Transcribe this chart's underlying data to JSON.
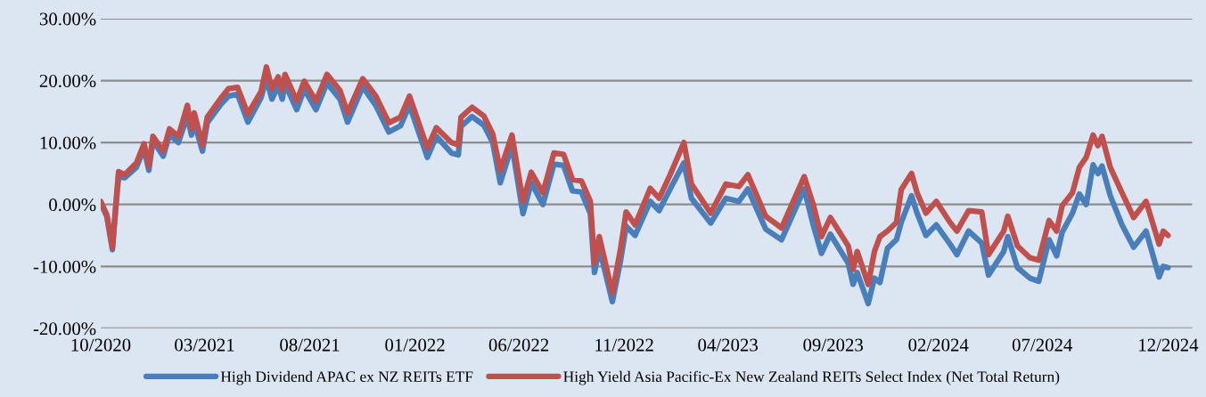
{
  "chart_data": {
    "type": "line",
    "x": [
      "2020-10-01",
      "2020-10-10",
      "2020-10-18",
      "2020-10-23",
      "2020-10-27",
      "2020-11-05",
      "2020-11-22",
      "2020-12-03",
      "2020-12-10",
      "2020-12-16",
      "2020-12-31",
      "2021-01-09",
      "2021-01-22",
      "2021-02-04",
      "2021-02-10",
      "2021-02-14",
      "2021-02-26",
      "2021-03-05",
      "2021-03-25",
      "2021-04-05",
      "2021-04-18",
      "2021-05-03",
      "2021-05-22",
      "2021-05-30",
      "2021-06-07",
      "2021-06-16",
      "2021-06-22",
      "2021-06-26",
      "2021-07-13",
      "2021-07-24",
      "2021-08-10",
      "2021-08-26",
      "2021-09-14",
      "2021-09-25",
      "2021-10-17",
      "2021-11-05",
      "2021-11-24",
      "2021-12-11",
      "2021-12-24",
      "2022-01-19",
      "2022-02-01",
      "2022-02-23",
      "2022-03-05",
      "2022-03-09",
      "2022-03-25",
      "2022-04-11",
      "2022-04-24",
      "2022-05-05",
      "2022-05-22",
      "2022-06-07",
      "2022-06-19",
      "2022-07-06",
      "2022-07-22",
      "2022-08-05",
      "2022-08-18",
      "2022-08-31",
      "2022-09-13",
      "2022-09-19",
      "2022-09-26",
      "2022-10-15",
      "2022-10-27",
      "2022-11-04",
      "2022-11-17",
      "2022-12-09",
      "2022-12-22",
      "2023-01-07",
      "2023-01-27",
      "2023-02-07",
      "2023-03-07",
      "2023-03-29",
      "2023-04-17",
      "2023-04-30",
      "2023-05-26",
      "2023-06-18",
      "2023-07-21",
      "2023-08-03",
      "2023-08-15",
      "2023-08-28",
      "2023-09-23",
      "2023-09-30",
      "2023-10-06",
      "2023-10-22",
      "2023-10-31",
      "2023-11-08",
      "2023-11-19",
      "2023-12-02",
      "2023-12-09",
      "2023-12-24",
      "2024-01-01",
      "2024-01-14",
      "2024-01-29",
      "2024-02-18",
      "2024-02-28",
      "2024-03-16",
      "2024-04-04",
      "2024-04-14",
      "2024-05-06",
      "2024-05-12",
      "2024-05-26",
      "2024-06-13",
      "2024-06-26",
      "2024-07-11",
      "2024-07-22",
      "2024-07-30",
      "2024-08-14",
      "2024-08-24",
      "2024-09-03",
      "2024-09-13",
      "2024-09-20",
      "2024-09-26",
      "2024-10-08",
      "2024-10-25",
      "2024-11-11",
      "2024-11-29",
      "2024-12-18",
      "2024-12-24",
      "2024-12-31"
    ],
    "series": [
      {
        "name": "High Dividend APAC ex NZ REITs ETF",
        "color": "#4a7ebb",
        "values": [
          0.3,
          -2,
          -7.3,
          -0.5,
          4.5,
          4.3,
          6,
          9,
          5.5,
          10.3,
          7.8,
          11.3,
          10,
          14.3,
          11.2,
          13.3,
          8.6,
          13.2,
          16.2,
          17.5,
          17.8,
          13.3,
          17.2,
          20.3,
          17,
          19.2,
          17,
          19.5,
          15.3,
          18.6,
          15.3,
          19.6,
          17,
          13.3,
          19,
          16,
          11.7,
          12.7,
          16,
          7.6,
          11,
          8.3,
          8,
          12.6,
          14.2,
          12.8,
          10,
          3.5,
          9.5,
          -1.5,
          3.5,
          0,
          6.5,
          6.3,
          2.2,
          2,
          -1.5,
          -11,
          -7,
          -15.7,
          -9,
          -3.5,
          -5,
          0.5,
          -1,
          2.5,
          6.7,
          1,
          -3,
          1,
          0.5,
          2.5,
          -4,
          -5.7,
          2.5,
          -3.3,
          -7.9,
          -4.8,
          -9.5,
          -12.9,
          -11,
          -16,
          -11.9,
          -12.6,
          -7.1,
          -5.7,
          -2.9,
          1.4,
          -1.4,
          -5,
          -3.3,
          -6.4,
          -8.1,
          -4.3,
          -6.2,
          -11.4,
          -7.6,
          -5.2,
          -10.2,
          -11.9,
          -12.4,
          -5.7,
          -8.3,
          -4.5,
          -1.4,
          1.7,
          0,
          6.4,
          5,
          6.2,
          1.4,
          -3.3,
          -6.9,
          -4.3,
          -11.7,
          -10,
          -10.2
        ]
      },
      {
        "name": "High Yield Asia Pacific-Ex New Zealand REITs Select Index (Net Total Return)",
        "color": "#c0504d",
        "values": [
          0.5,
          -1.7,
          -7,
          0,
          5.3,
          4.8,
          6.7,
          9.8,
          6.2,
          11,
          8.6,
          12.2,
          11,
          16,
          12.2,
          14.8,
          9.6,
          14.1,
          17.2,
          18.7,
          18.9,
          14.6,
          18.2,
          22.2,
          18.7,
          20.6,
          18.4,
          21,
          16.7,
          19.9,
          16.7,
          21,
          18.4,
          14.8,
          20.3,
          17.5,
          13.2,
          14.1,
          17.5,
          9.1,
          12.4,
          10,
          9.6,
          14.1,
          15.7,
          14.3,
          11.4,
          5.5,
          11.2,
          0.5,
          5.2,
          1.9,
          8.3,
          8.1,
          4,
          3.8,
          0.5,
          -9.5,
          -5.2,
          -14.3,
          -7.1,
          -1.2,
          -3.3,
          2.6,
          1,
          4.8,
          10,
          3.3,
          -1.4,
          3.3,
          2.9,
          4.8,
          -1.9,
          -3.8,
          4.5,
          0,
          -5.2,
          -2.1,
          -6.7,
          -10.5,
          -7.6,
          -12.9,
          -7.6,
          -5.2,
          -4.3,
          -2.9,
          2.4,
          5,
          1.9,
          -1.4,
          0.5,
          -2.9,
          -4.3,
          -1,
          -1.2,
          -8.1,
          -4.3,
          -1.9,
          -6.7,
          -8.6,
          -9,
          -2.6,
          -4.3,
          -0.2,
          1.9,
          6,
          7.6,
          11.2,
          9.5,
          11,
          6,
          1.9,
          -2.1,
          0.5,
          -6.4,
          -4.3,
          -5
        ]
      }
    ],
    "xlim": [
      "2020-10-01",
      "2025-02-04"
    ],
    "xticks": [
      {
        "value": "2020-10-01",
        "label": "10/2020"
      },
      {
        "value": "2021-03-01",
        "label": "03/2021"
      },
      {
        "value": "2021-08-01",
        "label": "08/2021"
      },
      {
        "value": "2022-01-01",
        "label": "01/2022"
      },
      {
        "value": "2022-06-01",
        "label": "06/2022"
      },
      {
        "value": "2022-11-01",
        "label": "11/2022"
      },
      {
        "value": "2023-04-01",
        "label": "04/2023"
      },
      {
        "value": "2023-09-01",
        "label": "09/2023"
      },
      {
        "value": "2024-02-01",
        "label": "02/2024"
      },
      {
        "value": "2024-07-01",
        "label": "07/2024"
      },
      {
        "value": "2024-12-31",
        "label": "12/2024"
      }
    ],
    "ylim": [
      -20,
      30
    ],
    "yticks": [
      {
        "value": -20,
        "label": "-20.00%"
      },
      {
        "value": -10,
        "label": "-10.00%"
      },
      {
        "value": 0,
        "label": "0.00%"
      },
      {
        "value": 10,
        "label": "10.00%"
      },
      {
        "value": 20,
        "label": "20.00%"
      },
      {
        "value": 30,
        "label": "30.00%"
      }
    ],
    "grid": "y",
    "legend": "bottom",
    "marker": "none",
    "line_style": "solid"
  }
}
